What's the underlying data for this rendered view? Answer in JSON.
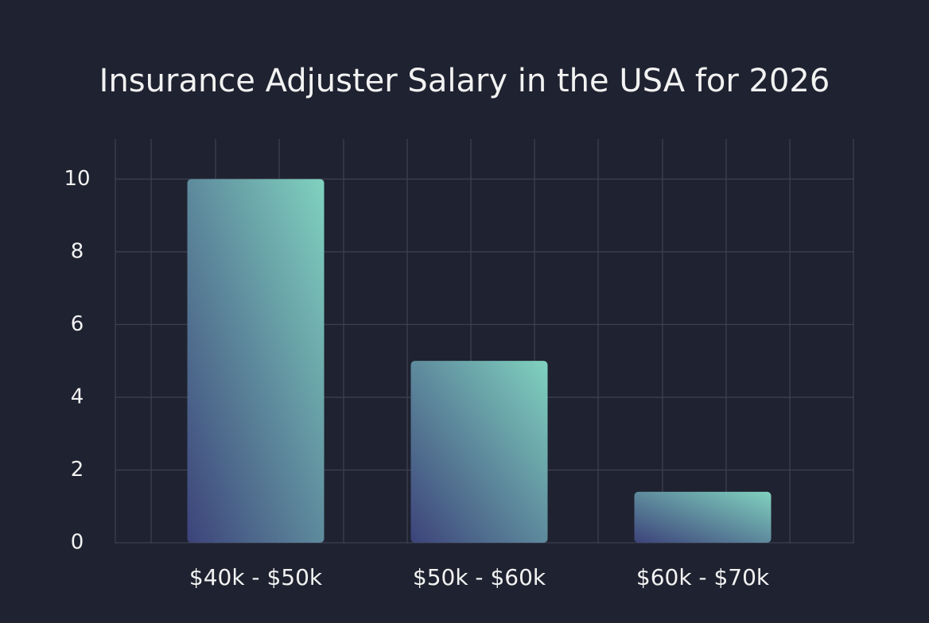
{
  "chart_data": {
    "type": "bar",
    "title": "Insurance Adjuster Salary in the USA for 2026",
    "categories": [
      "$40k - $50k",
      "$50k - $60k",
      "$60k - $70k"
    ],
    "values": [
      10,
      5,
      1.4
    ],
    "colors": [
      "#3c437a",
      "#80d2bf"
    ],
    "ylim": [
      0,
      11.1
    ],
    "yticks": [
      0,
      2,
      4,
      6,
      8,
      10
    ],
    "grid": true
  }
}
